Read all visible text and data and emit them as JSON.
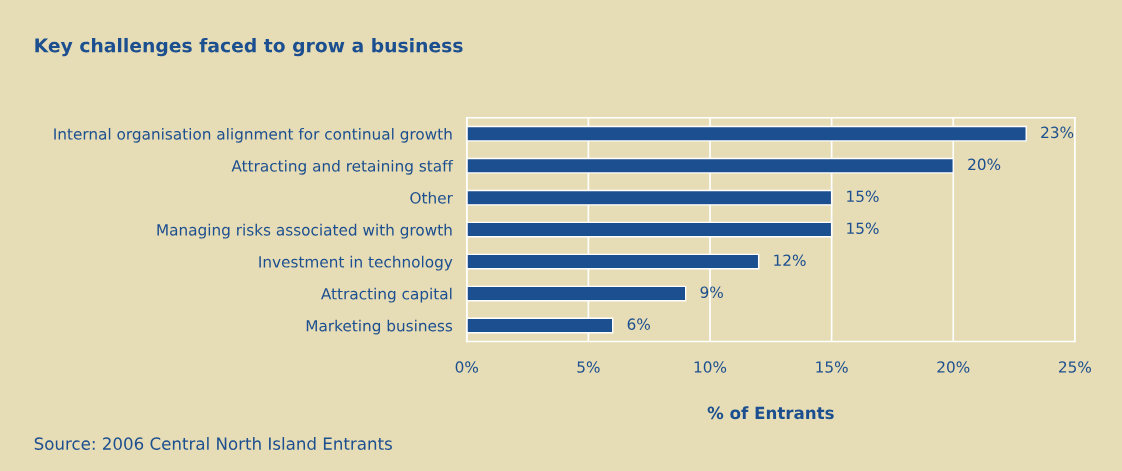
{
  "chart_data": {
    "type": "bar",
    "orientation": "horizontal",
    "title": "Key challenges faced to grow a business",
    "xlabel": "% of Entrants",
    "categories": [
      "Internal organisation alignment for continual growth",
      "Attracting and retaining staff",
      "Other",
      "Managing risks associated with growth",
      "Investment in technology",
      "Attracting capital",
      "Marketing business"
    ],
    "values": [
      23,
      20,
      15,
      15,
      12,
      9,
      6
    ],
    "value_labels": [
      "23%",
      "20%",
      "15%",
      "15%",
      "12%",
      "9%",
      "6%"
    ],
    "color": "#1c4f8f",
    "xlim": [
      0,
      25
    ],
    "xticks": [
      {
        "value": 0,
        "label": "0%"
      },
      {
        "value": 5,
        "label": "5%"
      },
      {
        "value": 10,
        "label": "10%"
      },
      {
        "value": 15,
        "label": "15%"
      },
      {
        "value": 20,
        "label": "20%"
      },
      {
        "value": 25,
        "label": "25%"
      }
    ],
    "grid": "x",
    "legend": false,
    "annotations": [
      "Source: 2006 Central North Island Entrants"
    ]
  }
}
